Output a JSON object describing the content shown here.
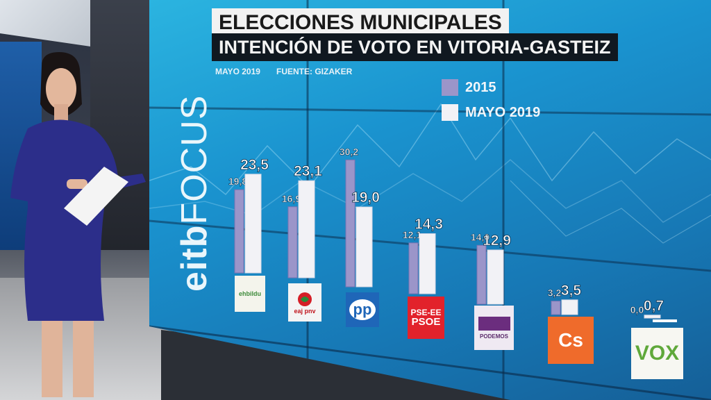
{
  "header": {
    "title": "ELECCIONES MUNICIPALES",
    "subtitle": "INTENCIÓN DE VOTO EN VITORIA-GASTEIZ",
    "date": "MAYO 2019",
    "source": "FUENTE: GIZAKER"
  },
  "logo": {
    "part1": "eitb",
    "part2": "FOCUS"
  },
  "colors": {
    "bar_2015": "#9b95c9",
    "bar_2019": "#f2f2f6",
    "wall": "#1a93cf"
  },
  "chart_data": {
    "type": "bar",
    "title": "INTENCIÓN DE VOTO EN VITORIA-GASTEIZ",
    "categories": [
      "EH Bildu",
      "EAJ-PNV",
      "PP",
      "PSE-EE PSOE",
      "Podemos",
      "Cs",
      "VOX"
    ],
    "series": [
      {
        "name": "2015",
        "values": [
          19.8,
          16.9,
          30.2,
          12.1,
          14.0,
          3.2,
          0.0
        ],
        "labels": [
          "19,8",
          "16,9",
          "30,2",
          "12,1",
          "14,0",
          "3,2",
          "0,0"
        ]
      },
      {
        "name": "MAYO 2019",
        "values": [
          23.5,
          23.1,
          19.0,
          14.3,
          12.9,
          3.5,
          0.7
        ],
        "labels": [
          "23,5",
          "23,1",
          "19,0",
          "14,3",
          "12,9",
          "3,5",
          "0,7"
        ]
      }
    ],
    "legend_position": "top-right"
  },
  "parties": [
    {
      "logo_text": "ehbildu",
      "icon": "ehbildu-logo"
    },
    {
      "logo_text": "eaj pnv",
      "icon": "pnv-logo"
    },
    {
      "logo_text": "pp",
      "icon": "pp-logo"
    },
    {
      "logo_text_line1": "PSE-EE",
      "logo_text_line2": "PSOE",
      "icon": "psoe-logo"
    },
    {
      "logo_text": "PODEMOS",
      "icon": "podemos-logo"
    },
    {
      "logo_text": "Cs",
      "icon": "cs-logo"
    },
    {
      "logo_text": "VOX",
      "icon": "vox-logo"
    }
  ]
}
